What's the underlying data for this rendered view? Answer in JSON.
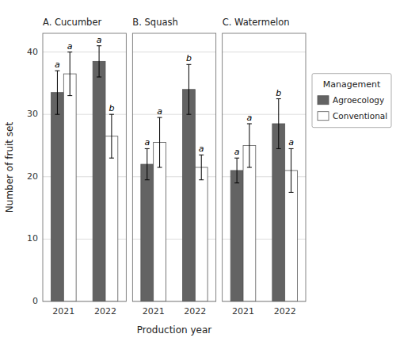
{
  "chart_data": [
    {
      "type": "bar",
      "title": "A. Cucumber",
      "categories": [
        "2021",
        "2022"
      ],
      "series": [
        {
          "name": "Agroecology",
          "color": "#636363",
          "values": [
            33.5,
            38.5
          ],
          "errors": [
            3.5,
            2.5
          ],
          "sig_letters": [
            "a",
            "a"
          ]
        },
        {
          "name": "Conventional",
          "color": "#ffffff",
          "values": [
            36.5,
            26.5
          ],
          "errors": [
            3.5,
            3.5
          ],
          "sig_letters": [
            "a",
            "b"
          ]
        }
      ],
      "ylabel": "Number of fruit set",
      "ylim": [
        0,
        43
      ],
      "yticks": [
        0,
        10,
        20,
        30,
        40
      ],
      "grid": true
    },
    {
      "type": "bar",
      "title": "B.  Squash",
      "categories": [
        "2021",
        "2022"
      ],
      "series": [
        {
          "name": "Agroecology",
          "color": "#636363",
          "values": [
            22.0,
            34.0
          ],
          "errors": [
            2.5,
            4.0
          ],
          "sig_letters": [
            "a",
            "b"
          ]
        },
        {
          "name": "Conventional",
          "color": "#ffffff",
          "values": [
            25.5,
            21.5
          ],
          "errors": [
            4.0,
            2.0
          ],
          "sig_letters": [
            "a",
            "a"
          ]
        }
      ],
      "xlabel": "Production year",
      "ylim": [
        0,
        43
      ],
      "yticks": [
        0,
        10,
        20,
        30,
        40
      ],
      "grid": true,
      "tick_labels": "x"
    },
    {
      "type": "bar",
      "title": "C.  Watermelon",
      "categories": [
        "2021",
        "2022"
      ],
      "series": [
        {
          "name": "Agroecology",
          "color": "#636363",
          "values": [
            21.0,
            28.5
          ],
          "errors": [
            2.0,
            4.0
          ],
          "sig_letters": [
            "a",
            "b"
          ]
        },
        {
          "name": "Conventional",
          "color": "#ffffff",
          "values": [
            25.0,
            21.0
          ],
          "errors": [
            3.5,
            3.5
          ],
          "sig_letters": [
            "a",
            "a"
          ]
        }
      ],
      "ylim": [
        0,
        43
      ],
      "yticks": [
        0,
        10,
        20,
        30,
        40
      ],
      "grid": true,
      "tick_labels": "x",
      "legend": "right",
      "legend_title": "Management"
    }
  ]
}
